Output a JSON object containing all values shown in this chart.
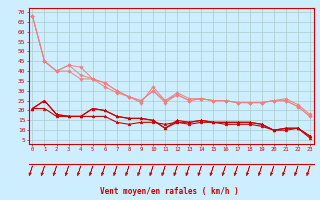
{
  "bg_color": "#cceeff",
  "grid_color": "#aacccc",
  "line_color_light": "#f08080",
  "line_color_dark": "#cc0000",
  "xlabel": "Vent moyen/en rafales ( km/h )",
  "xlabel_color": "#cc0000",
  "ylabel_ticks": [
    5,
    10,
    15,
    20,
    25,
    30,
    35,
    40,
    45,
    50,
    55,
    60,
    65,
    70
  ],
  "xlim": [
    -0.3,
    23.3
  ],
  "ylim": [
    3,
    72
  ],
  "x_ticks": [
    0,
    1,
    2,
    3,
    4,
    5,
    6,
    7,
    8,
    9,
    10,
    11,
    12,
    13,
    14,
    15,
    16,
    17,
    18,
    19,
    20,
    21,
    22,
    23
  ],
  "light_lines": [
    [
      68,
      45,
      40,
      40,
      36,
      36,
      32,
      29,
      27,
      24,
      32,
      25,
      29,
      26,
      26,
      25,
      25,
      24,
      24,
      24,
      25,
      26,
      23,
      18
    ],
    [
      68,
      45,
      40,
      43,
      38,
      36,
      34,
      30,
      27,
      25,
      30,
      25,
      28,
      25,
      26,
      25,
      25,
      24,
      24,
      24,
      25,
      25,
      22,
      17
    ],
    [
      68,
      45,
      40,
      43,
      42,
      36,
      34,
      30,
      27,
      25,
      30,
      24,
      28,
      25,
      26,
      25,
      25,
      24,
      24,
      24,
      25,
      25,
      22,
      17
    ]
  ],
  "dark_lines": [
    [
      21,
      25,
      18,
      17,
      17,
      21,
      20,
      17,
      16,
      16,
      15,
      11,
      15,
      14,
      15,
      14,
      14,
      14,
      14,
      13,
      10,
      11,
      11,
      7
    ],
    [
      21,
      25,
      18,
      17,
      17,
      21,
      20,
      17,
      16,
      16,
      15,
      11,
      14,
      14,
      15,
      14,
      14,
      14,
      14,
      13,
      10,
      11,
      11,
      7
    ],
    [
      21,
      21,
      17,
      17,
      17,
      17,
      17,
      14,
      13,
      14,
      14,
      13,
      14,
      13,
      14,
      14,
      13,
      13,
      13,
      12,
      10,
      10,
      11,
      6
    ]
  ],
  "arrow_color": "#cc0000",
  "tick_color": "#cc0000",
  "axis_color": "#cc0000",
  "fig_width": 3.2,
  "fig_height": 2.0,
  "dpi": 100
}
